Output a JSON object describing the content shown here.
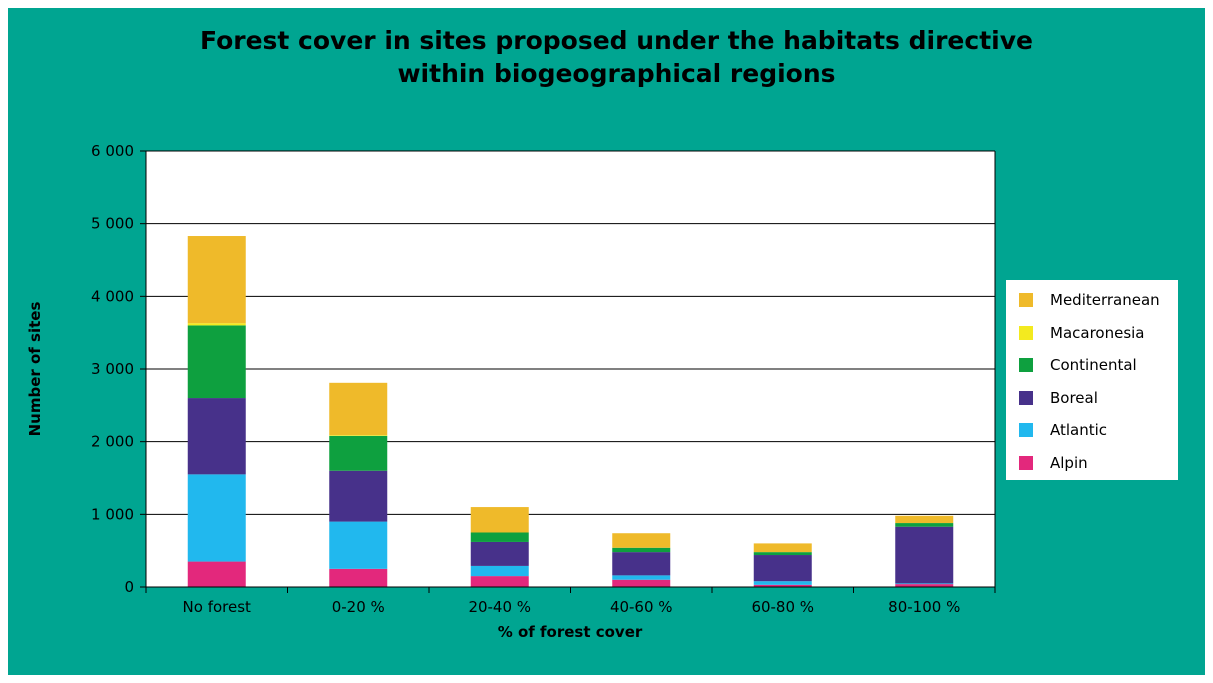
{
  "colors": {
    "Mediterranean": "#efba2a",
    "Macaronesia": "#f3ea1f",
    "Continental": "#0ea03f",
    "Boreal": "#47318a",
    "Atlantic": "#21b8ee",
    "Alpin": "#e3287c"
  },
  "chart_data": {
    "type": "bar",
    "stacked": true,
    "title_lines": [
      "Forest cover in sites proposed under the habitats directive",
      "within biogeographical regions"
    ],
    "xlabel": "% of forest cover",
    "ylabel": "Number of sites",
    "ylim": [
      0,
      6000
    ],
    "yticks": [
      0,
      1000,
      2000,
      3000,
      4000,
      5000,
      6000
    ],
    "ytick_labels": [
      "0",
      "1 000",
      "2 000",
      "3 000",
      "4 000",
      "5 000",
      "6 000"
    ],
    "grid": true,
    "legend_position": "right",
    "categories": [
      "No forest",
      "0-20 %",
      "20-40 %",
      "40-60 %",
      "60-80 %",
      "80-100 %"
    ],
    "series": [
      {
        "name": "Alpin",
        "values": [
          350,
          250,
          150,
          100,
          30,
          40
        ]
      },
      {
        "name": "Atlantic",
        "values": [
          1200,
          650,
          140,
          60,
          50,
          10
        ]
      },
      {
        "name": "Boreal",
        "values": [
          1050,
          700,
          330,
          320,
          360,
          780
        ]
      },
      {
        "name": "Continental",
        "values": [
          1000,
          480,
          130,
          60,
          40,
          50
        ]
      },
      {
        "name": "Macaronesia",
        "values": [
          30,
          10,
          0,
          0,
          0,
          0
        ]
      },
      {
        "name": "Mediterranean",
        "values": [
          1200,
          720,
          350,
          200,
          120,
          100
        ]
      }
    ],
    "legend_order": [
      "Mediterranean",
      "Macaronesia",
      "Continental",
      "Boreal",
      "Atlantic",
      "Alpin"
    ]
  }
}
